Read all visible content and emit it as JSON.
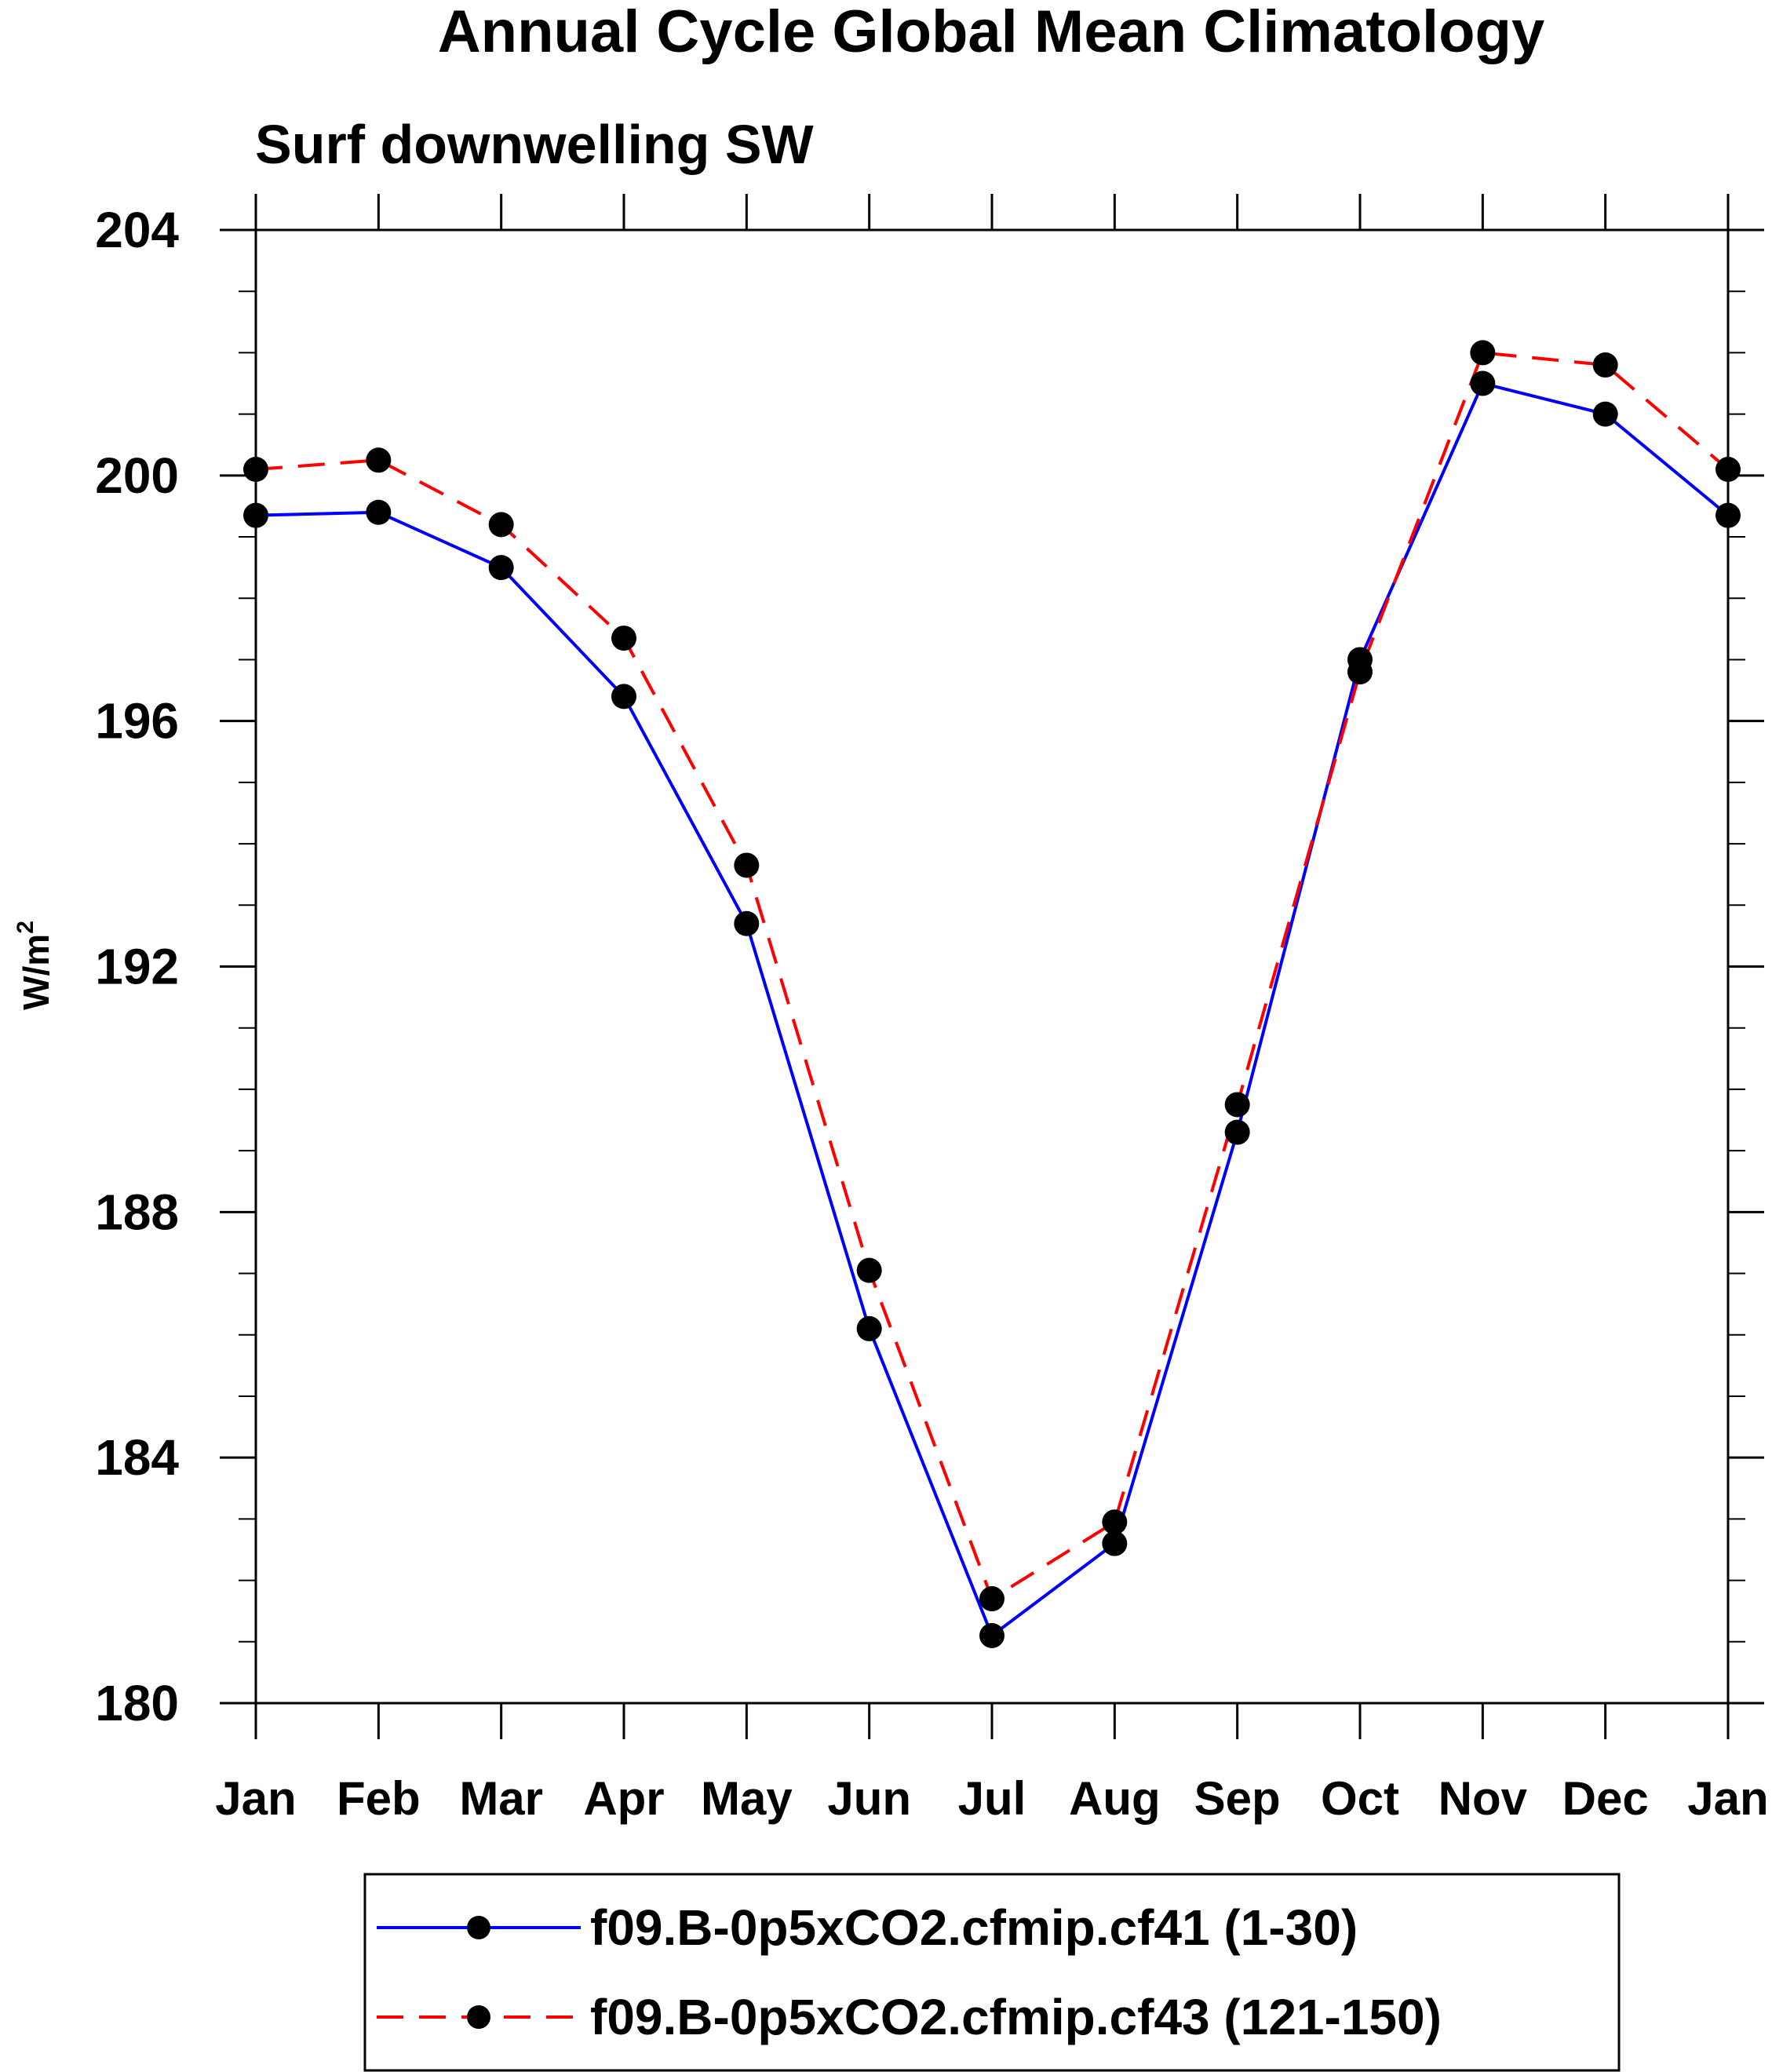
{
  "chart_data": {
    "type": "line",
    "title": "Annual Cycle Global Mean Climatology",
    "subtitle": "Surf downwelling SW",
    "ylabel": "W/m",
    "ylabel_superscript": "2",
    "xlabel": "",
    "categories": [
      "Jan",
      "Feb",
      "Mar",
      "Apr",
      "May",
      "Jun",
      "Jul",
      "Aug",
      "Sep",
      "Oct",
      "Nov",
      "Dec",
      "Jan"
    ],
    "ylim": [
      180,
      204
    ],
    "yticks": [
      "180",
      "184",
      "188",
      "192",
      "196",
      "200",
      "204"
    ],
    "yminor_step": 1,
    "grid": false,
    "legend_placement": "bottom",
    "series": [
      {
        "name": "f09.B-0p5xCO2.cfmip.cf41 (1-30)",
        "color": "#0000ff",
        "dash": "solid",
        "marker": "filled-circle",
        "values": [
          199.35,
          199.4,
          198.5,
          196.4,
          192.7,
          186.1,
          181.1,
          182.6,
          189.3,
          197.0,
          201.5,
          201.0,
          199.35
        ]
      },
      {
        "name": "f09.B-0p5xCO2.cfmip.cf43 (121-150)",
        "color": "#ff0000",
        "dash": "dashed",
        "marker": "filled-circle",
        "values": [
          200.1,
          200.25,
          199.2,
          197.35,
          193.65,
          187.05,
          181.7,
          182.95,
          189.75,
          196.8,
          202.0,
          201.8,
          200.1
        ]
      }
    ]
  }
}
